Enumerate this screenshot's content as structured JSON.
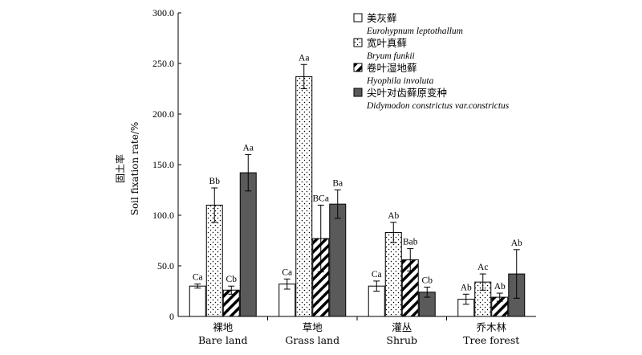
{
  "chart_data": {
    "type": "bar",
    "ylabel_cn": "固土率",
    "ylabel": "Soil fixation rate/%",
    "ylim": [
      0,
      300
    ],
    "yticks": [
      "0",
      "50.0",
      "100.0",
      "150.0",
      "200.0",
      "250.0",
      "300.0"
    ],
    "categories": [
      {
        "cn": "裸地",
        "en": "Bare land"
      },
      {
        "cn": "草地",
        "en": "Grass land"
      },
      {
        "cn": "灌丛",
        "en": "Shrub"
      },
      {
        "cn": "乔木林",
        "en": "Tree forest"
      }
    ],
    "series": [
      {
        "name_cn": "美灰藓",
        "name_latin": "Eurohypnum leptothallum",
        "pattern": "white",
        "values": [
          30,
          32,
          30,
          17
        ],
        "errors": [
          2,
          5,
          5,
          5
        ],
        "labels": [
          "Ca",
          "Ca",
          "Ca",
          "Ab"
        ]
      },
      {
        "name_cn": "宽叶真藓",
        "name_latin": "Bryum funkii",
        "pattern": "dots",
        "values": [
          110,
          237,
          83,
          34
        ],
        "errors": [
          17,
          12,
          10,
          8
        ],
        "labels": [
          "Bb",
          "Aa",
          "Ab",
          "Ac"
        ]
      },
      {
        "name_cn": "卷叶湿地藓",
        "name_latin": "Hyophila involuta",
        "pattern": "hatch",
        "values": [
          26,
          77,
          56,
          19
        ],
        "errors": [
          4,
          33,
          11,
          4
        ],
        "labels": [
          "Cb",
          "BCa",
          "Bab",
          "Ab"
        ]
      },
      {
        "name_cn": "尖叶对齿藓原变种",
        "name_latin": "Didymodon constrictus var.constrictus",
        "pattern": "dark",
        "values": [
          142,
          111,
          24,
          42
        ],
        "errors": [
          18,
          14,
          5,
          24
        ],
        "labels": [
          "Aa",
          "Ba",
          "Cb",
          "Ab"
        ]
      }
    ]
  }
}
